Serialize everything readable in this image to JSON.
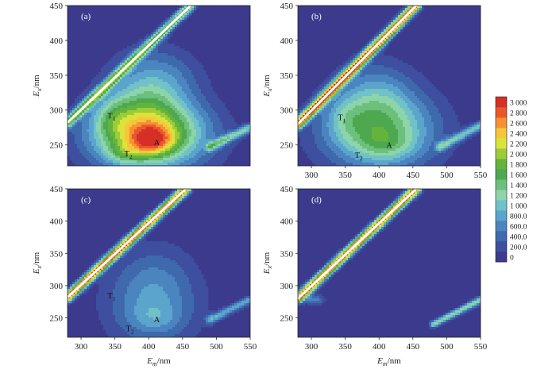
{
  "chart_data": [
    {
      "type": "heatmap",
      "panel_label": "(a)",
      "xlabel": "",
      "ylabel": "Ex/nm",
      "xlim": [
        280,
        550
      ],
      "ylim": [
        220,
        450
      ],
      "xticks": [],
      "yticks": [
        250,
        300,
        350,
        400,
        450
      ],
      "peaks": [
        {
          "label": "T1",
          "em": 345,
          "ex": 293
        },
        {
          "label": "T2",
          "em": 370,
          "ex": 238
        },
        {
          "label": "A",
          "em": 412,
          "ex": 254
        }
      ],
      "ridges": [
        {
          "type": "scatter_band",
          "from": [
            280,
            282
          ],
          "to": [
            462,
            450
          ],
          "width": 9,
          "peak": 1750
        },
        {
          "type": "band",
          "from": [
            490,
            247
          ],
          "to": [
            550,
            275
          ],
          "width": 8,
          "peak": 1100
        }
      ],
      "blobs": [
        {
          "em": 400,
          "ex": 265,
          "sx": 60,
          "sy": 34,
          "amp": 2100
        },
        {
          "em": 405,
          "ex": 256,
          "sx": 22,
          "sy": 14,
          "amp": 1000
        },
        {
          "em": 395,
          "ex": 315,
          "sx": 42,
          "sy": 45,
          "amp": 850
        },
        {
          "em": 345,
          "ex": 290,
          "sx": 20,
          "sy": 22,
          "amp": 420
        },
        {
          "em": 365,
          "ex": 238,
          "sx": 20,
          "sy": 10,
          "amp": 500
        },
        {
          "em": 430,
          "ex": 350,
          "sx": 40,
          "sy": 28,
          "amp": 300
        }
      ]
    },
    {
      "type": "heatmap",
      "panel_label": "(b)",
      "xlabel": "",
      "ylabel": "Ex/nm",
      "xlim": [
        280,
        550
      ],
      "ylim": [
        220,
        450
      ],
      "xticks": [
        300,
        350,
        400,
        450,
        500,
        550
      ],
      "yticks": [
        250,
        300,
        350,
        400,
        450
      ],
      "peaks": [
        {
          "label": "T1",
          "em": 345,
          "ex": 290
        },
        {
          "label": "T2",
          "em": 370,
          "ex": 236
        },
        {
          "label": "A",
          "em": 415,
          "ex": 250
        }
      ],
      "ridges": [
        {
          "type": "scatter_band",
          "from": [
            280,
            280
          ],
          "to": [
            455,
            450
          ],
          "width": 9,
          "peak": 3000
        },
        {
          "type": "band",
          "from": [
            490,
            247
          ],
          "to": [
            550,
            278
          ],
          "width": 8,
          "peak": 1000
        }
      ],
      "blobs": [
        {
          "em": 400,
          "ex": 270,
          "sx": 60,
          "sy": 40,
          "amp": 1400
        },
        {
          "em": 395,
          "ex": 320,
          "sx": 40,
          "sy": 38,
          "amp": 600
        },
        {
          "em": 410,
          "ex": 250,
          "sx": 30,
          "sy": 16,
          "amp": 400
        },
        {
          "em": 350,
          "ex": 288,
          "sx": 20,
          "sy": 22,
          "amp": 300
        }
      ]
    },
    {
      "type": "heatmap",
      "panel_label": "(c)",
      "xlabel": "Em/nm",
      "ylabel": "Ex/nm",
      "xlim": [
        280,
        550
      ],
      "ylim": [
        220,
        450
      ],
      "xticks": [
        300,
        350,
        400,
        450,
        500,
        550
      ],
      "yticks": [
        250,
        300,
        350,
        400,
        450
      ],
      "peaks": [
        {
          "label": "T1",
          "em": 345,
          "ex": 285
        },
        {
          "label": "T2",
          "em": 372,
          "ex": 234
        },
        {
          "label": "A",
          "em": 412,
          "ex": 248
        }
      ],
      "ridges": [
        {
          "type": "scatter_band",
          "from": [
            280,
            282
          ],
          "to": [
            455,
            450
          ],
          "width": 9,
          "peak": 3000
        },
        {
          "type": "band",
          "from": [
            490,
            247
          ],
          "to": [
            550,
            278
          ],
          "width": 8,
          "peak": 900
        }
      ],
      "blobs": [
        {
          "em": 405,
          "ex": 270,
          "sx": 50,
          "sy": 48,
          "amp": 720
        },
        {
          "em": 410,
          "ex": 250,
          "sx": 26,
          "sy": 16,
          "amp": 300
        },
        {
          "em": 410,
          "ex": 320,
          "sx": 40,
          "sy": 40,
          "amp": 250
        }
      ]
    },
    {
      "type": "heatmap",
      "panel_label": "(d)",
      "xlabel": "Em/nm",
      "ylabel": "Ex/nm",
      "xlim": [
        280,
        550
      ],
      "ylim": [
        220,
        450
      ],
      "xticks": [
        300,
        350,
        400,
        450,
        500,
        550
      ],
      "yticks": [
        250,
        300,
        350,
        400,
        450
      ],
      "peaks": [],
      "ridges": [
        {
          "type": "scatter_band",
          "from": [
            280,
            280
          ],
          "to": [
            455,
            450
          ],
          "width": 9,
          "peak": 3000
        },
        {
          "type": "band",
          "from": [
            480,
            240
          ],
          "to": [
            550,
            278
          ],
          "width": 7,
          "peak": 1300
        }
      ],
      "blobs": [
        {
          "em": 305,
          "ex": 278,
          "sx": 10,
          "sy": 6,
          "amp": 700
        }
      ]
    }
  ],
  "colorbar": {
    "levels": [
      0,
      200,
      400,
      600,
      800,
      1000,
      1200,
      1400,
      1600,
      1800,
      2000,
      2200,
      2400,
      2600,
      2800,
      3000
    ],
    "labels": [
      "0",
      "200.0",
      "400.0",
      "600.0",
      "800.0",
      "1 000",
      "1 200",
      "1 400",
      "1 600",
      "1 800",
      "2 000",
      "2 200",
      "2 400",
      "2 600",
      "2 800",
      "3 000"
    ],
    "colors": [
      "#3b3a8c",
      "#3d4f9e",
      "#3f69ad",
      "#4a85c0",
      "#5ba4cc",
      "#70c2c6",
      "#8dd4ab",
      "#6cc07c",
      "#4ea84f",
      "#64b43c",
      "#9ccc3a",
      "#dbe23c",
      "#f6c63a",
      "#f59332",
      "#e9582b",
      "#d62f28"
    ]
  },
  "colors": {
    "background": "#3b3a8c",
    "scatter_core": "#ffffff"
  }
}
